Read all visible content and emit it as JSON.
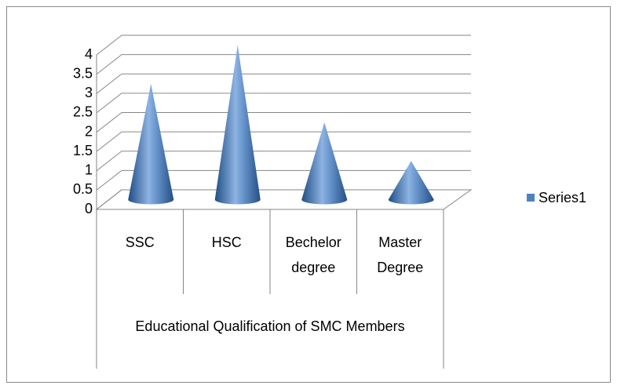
{
  "chart_data": {
    "type": "bar",
    "shape": "cone",
    "categories": [
      "SSC",
      "HSC",
      "Bechelor degree",
      "Master Degree"
    ],
    "values": [
      3,
      4,
      2,
      1
    ],
    "color": "#4f81bd",
    "x_label": "Educational Qualification of SMC Members",
    "series_name": "Series1",
    "ylim": [
      0,
      4
    ],
    "yticks": [
      0,
      0.5,
      1,
      1.5,
      2,
      2.5,
      3,
      3.5,
      4
    ],
    "grid": true,
    "legend": "right"
  }
}
